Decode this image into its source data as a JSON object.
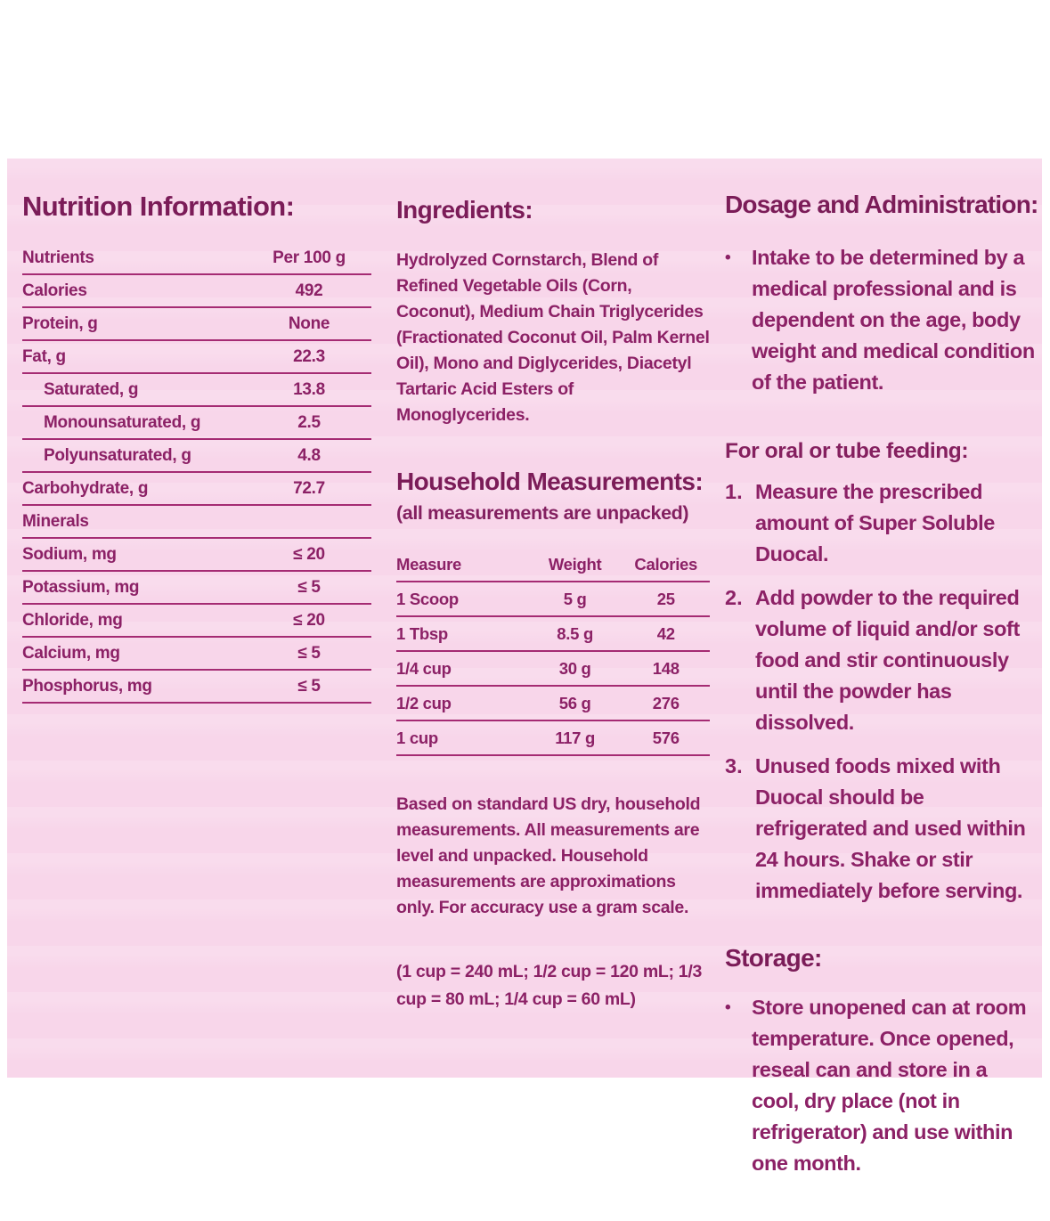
{
  "panel": {
    "background_color": "#f8d6ea",
    "heading_color": "#7b1c58",
    "text_color": "#8c2166",
    "rule_color": "#a52b73"
  },
  "nutrition": {
    "title": "Nutrition Information:",
    "table": {
      "headers": [
        "Nutrients",
        "Per 100 g"
      ],
      "rows": [
        {
          "label": "Calories",
          "value": "492",
          "indent": false
        },
        {
          "label": "Protein, g",
          "value": "None",
          "indent": false
        },
        {
          "label": "Fat, g",
          "value": "22.3",
          "indent": false
        },
        {
          "label": "Saturated, g",
          "value": "13.8",
          "indent": true
        },
        {
          "label": "Monounsaturated, g",
          "value": "2.5",
          "indent": true
        },
        {
          "label": "Polyunsaturated, g",
          "value": "4.8",
          "indent": true
        },
        {
          "label": "Carbohydrate, g",
          "value": "72.7",
          "indent": false
        },
        {
          "label": "Minerals",
          "value": "",
          "indent": false
        },
        {
          "label": "Sodium, mg",
          "value": "≤ 20",
          "indent": false
        },
        {
          "label": "Potassium, mg",
          "value": "≤ 5",
          "indent": false
        },
        {
          "label": "Chloride, mg",
          "value": "≤ 20",
          "indent": false
        },
        {
          "label": "Calcium, mg",
          "value": "≤ 5",
          "indent": false
        },
        {
          "label": "Phosphorus, mg",
          "value": "≤ 5",
          "indent": false
        }
      ]
    }
  },
  "ingredients": {
    "title": "Ingredients:",
    "body": "Hydrolyzed Cornstarch, Blend of Refined Vegetable Oils (Corn, Coconut), Medium Chain Triglycerides (Fractionated Coconut Oil, Palm Kernel Oil), Mono and Diglycerides, Diacetyl Tartaric Acid Esters of Monoglycerides."
  },
  "household": {
    "title": "Household Measurements:",
    "subtitle": "(all measurements are unpacked)",
    "table": {
      "headers": [
        "Measure",
        "Weight",
        "Calories"
      ],
      "rows": [
        [
          "1 Scoop",
          "5 g",
          "25"
        ],
        [
          "1 Tbsp",
          "8.5 g",
          "42"
        ],
        [
          "1/4 cup",
          "30 g",
          "148"
        ],
        [
          "1/2 cup",
          "56 g",
          "276"
        ],
        [
          "1 cup",
          "117 g",
          "576"
        ]
      ]
    },
    "note": "Based on standard US dry, household measurements. All measurements are level and unpacked. Household measurements are approximations only. For accuracy use a gram scale.",
    "conversions": "(1 cup = 240 mL;  1/2 cup = 120 mL; 1/3 cup = 80 mL;  1/4 cup = 60 mL)"
  },
  "dosage": {
    "title": "Dosage and Administration:",
    "bullet_marker": "•",
    "intro": "Intake to be determined by a medical professional and is dependent on the age, body weight and medical condition of the patient.",
    "feeding_title": "For oral or tube feeding:",
    "steps": [
      "Measure the prescribed amount of Super Soluble Duocal.",
      "Add powder to the required volume of liquid and/or soft food and stir continuously until the powder has dissolved.",
      "Unused foods mixed with Duocal should be refrigerated and used within 24 hours. Shake or stir immediately before serving."
    ]
  },
  "storage": {
    "title": "Storage:",
    "bullet_marker": "•",
    "text": "Store unopened can at room temperature. Once opened, reseal can and store in a cool, dry place (not in refrigerator) and use within one month."
  }
}
